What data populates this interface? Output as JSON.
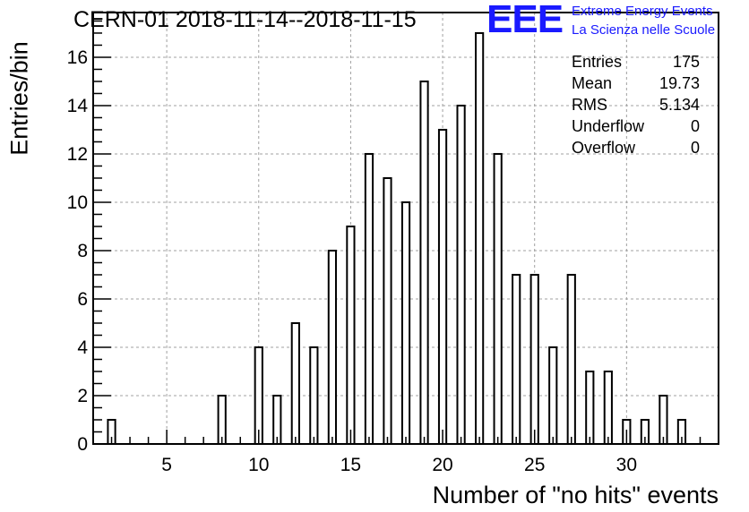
{
  "header": {
    "title": "CERN-01 2018-11-14--2018-11-15",
    "logo_mark": "EEE",
    "logo_line1": "Extreme Energy Events",
    "logo_line2": "La Scienza nelle Scuole",
    "logo_color": "#1a1aff"
  },
  "stats_box": {
    "rows": [
      {
        "label": "Entries",
        "value": "175"
      },
      {
        "label": "Mean",
        "value": "19.73"
      },
      {
        "label": "RMS",
        "value": "5.134"
      },
      {
        "label": "Underflow",
        "value": "0"
      },
      {
        "label": "Overflow",
        "value": "0"
      }
    ]
  },
  "chart_data": {
    "type": "bar",
    "title": "CERN-01 2018-11-14--2018-11-15",
    "xlabel": "Number of \"no hits\" events",
    "ylabel": "Entries/bin",
    "xlim": [
      1,
      35
    ],
    "ylim": [
      0,
      17.85
    ],
    "xticks": [
      5,
      10,
      15,
      20,
      25,
      30
    ],
    "yticks": [
      0,
      2,
      4,
      6,
      8,
      10,
      12,
      14,
      16
    ],
    "grid": true,
    "bin_width": 0.4,
    "x": [
      2,
      8,
      10,
      11,
      12,
      13,
      14,
      15,
      16,
      17,
      18,
      19,
      20,
      21,
      22,
      23,
      24,
      25,
      26,
      27,
      28,
      29,
      30,
      31,
      32,
      33
    ],
    "values": [
      1,
      2,
      4,
      2,
      5,
      4,
      8,
      9,
      12,
      11,
      10,
      15,
      13,
      14,
      17,
      12,
      7,
      7,
      4,
      7,
      3,
      3,
      1,
      1,
      2,
      1
    ]
  }
}
